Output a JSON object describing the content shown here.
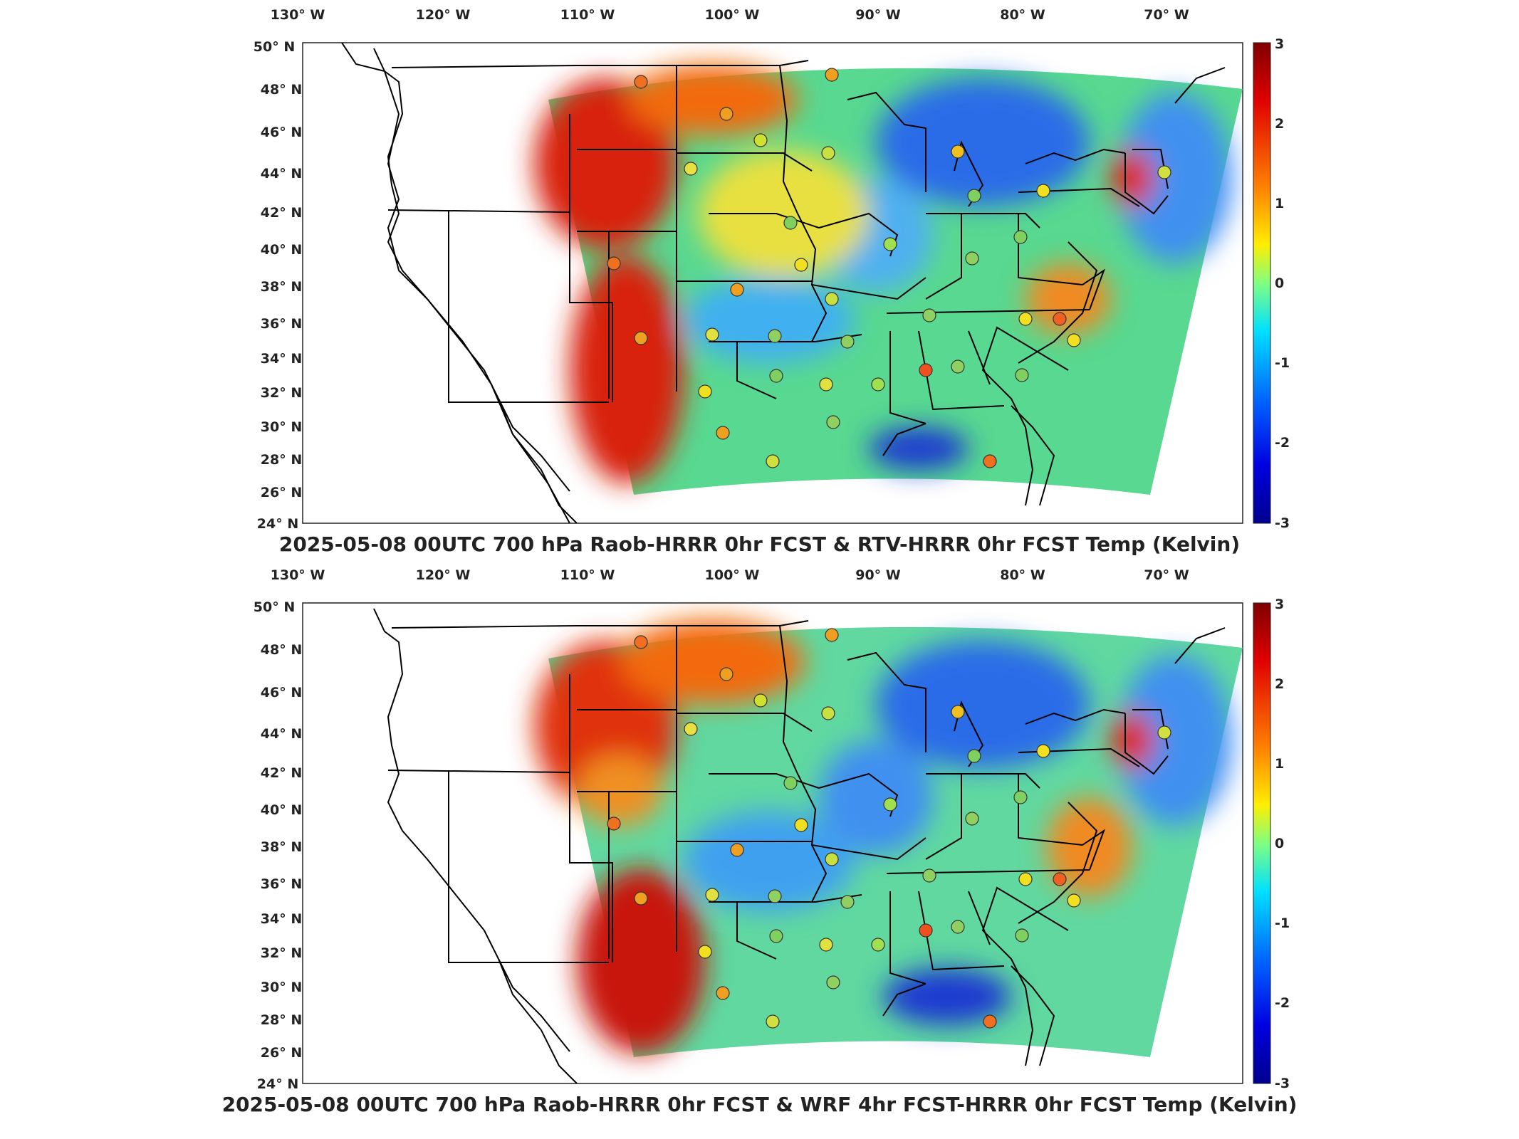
{
  "panels": [
    {
      "title": "2025-05-08 00UTC 700 hPa Raob-HRRR 0hr FCST & RTV-HRRR 0hr FCST Temp (Kelvin)",
      "lon_ticks": [
        "130° W",
        "120° W",
        "110° W",
        "100° W",
        "90° W",
        "80° W",
        "70° W"
      ],
      "lat_ticks": [
        "50° N",
        "48° N",
        "46° N",
        "44° N",
        "42° N",
        "40° N",
        "38° N",
        "36° N",
        "34° N",
        "32° N",
        "30° N",
        "28° N",
        "26° N",
        "24° N"
      ],
      "colorbar_ticks": [
        "3",
        "2",
        "1",
        "0",
        "-1",
        "-2",
        "-3"
      ],
      "colorbar_range": [
        -3,
        3
      ],
      "colormap": "jet"
    },
    {
      "title": "2025-05-08 00UTC 700 hPa Raob-HRRR 0hr FCST & WRF 4hr FCST-HRRR 0hr FCST Temp (Kelvin)",
      "lon_ticks": [
        "130° W",
        "120° W",
        "110° W",
        "100° W",
        "90° W",
        "80° W",
        "70° W"
      ],
      "lat_ticks": [
        "50° N",
        "48° N",
        "46° N",
        "44° N",
        "42° N",
        "40° N",
        "38° N",
        "36° N",
        "34° N",
        "32° N",
        "30° N",
        "28° N",
        "26° N",
        "24° N"
      ],
      "colorbar_ticks": [
        "3",
        "2",
        "1",
        "0",
        "-1",
        "-2",
        "-3"
      ],
      "colorbar_range": [
        -3,
        3
      ],
      "colormap": "jet"
    }
  ],
  "colors": {
    "dark_red": "#800000",
    "red": "#e8220a",
    "orange": "#f58a0a",
    "yellow": "#f5e61e",
    "green": "#7ddc5a",
    "cyan": "#30d0e8",
    "blue": "#2060e8",
    "dark_blue": "#00008f"
  }
}
